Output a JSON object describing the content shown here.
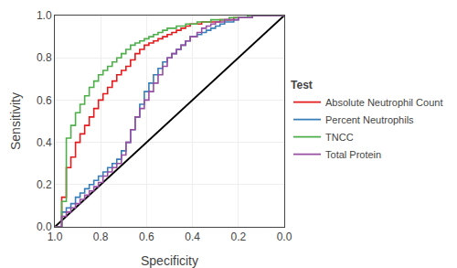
{
  "chart_data": {
    "type": "step",
    "title": "",
    "xlabel": "Specificity",
    "ylabel": "Sensitivity",
    "legend_title": "Test",
    "legend": "right",
    "grid": true,
    "xlim": [
      1.0,
      0.0
    ],
    "ylim": [
      0.0,
      1.0
    ],
    "xticks": [
      {
        "value": 1.0,
        "label": "1.0"
      },
      0.8,
      0.6,
      0.4,
      0.2,
      {
        "value": 0.0,
        "label": "0.0"
      }
    ],
    "yticks": [
      {
        "value": 0.0,
        "label": "0.0"
      },
      0.2,
      0.4,
      0.6,
      0.8,
      {
        "value": 1.0,
        "label": "1.0"
      }
    ],
    "series": [
      {
        "type": "line",
        "color": "#000000",
        "x": [
          1.0,
          0.0
        ],
        "values": [
          0.0,
          1.0
        ]
      },
      {
        "name": "Absolute Neutrophil Count",
        "color": "#e41a1c",
        "x": [
          1.0,
          0.97,
          0.95,
          0.93,
          0.91,
          0.89,
          0.87,
          0.85,
          0.83,
          0.81,
          0.79,
          0.77,
          0.75,
          0.73,
          0.71,
          0.69,
          0.67,
          0.65,
          0.63,
          0.61,
          0.59,
          0.57,
          0.55,
          0.53,
          0.51,
          0.49,
          0.47,
          0.45,
          0.43,
          0.41,
          0.38,
          0.36,
          0.34,
          0.32,
          0.3,
          0.28,
          0.26,
          0.24,
          0.22,
          0.2,
          0.18,
          0.16,
          0.14,
          0.12,
          0.1,
          0.08,
          0.06,
          0.04,
          0.02,
          0.0
        ],
        "values": [
          0.0,
          0.14,
          0.28,
          0.33,
          0.4,
          0.44,
          0.48,
          0.52,
          0.56,
          0.6,
          0.63,
          0.66,
          0.69,
          0.72,
          0.74,
          0.76,
          0.79,
          0.82,
          0.84,
          0.86,
          0.87,
          0.88,
          0.89,
          0.9,
          0.91,
          0.92,
          0.93,
          0.94,
          0.95,
          0.96,
          0.96,
          0.97,
          0.97,
          0.97,
          0.97,
          0.98,
          0.98,
          0.98,
          0.99,
          0.99,
          0.99,
          0.99,
          1.0,
          1.0,
          1.0,
          1.0,
          1.0,
          1.0,
          1.0,
          1.0
        ]
      },
      {
        "name": "Percent Neutrophils",
        "color": "#377eb8",
        "x": [
          1.0,
          0.97,
          0.95,
          0.93,
          0.91,
          0.89,
          0.87,
          0.85,
          0.83,
          0.81,
          0.79,
          0.77,
          0.75,
          0.73,
          0.71,
          0.69,
          0.67,
          0.65,
          0.63,
          0.61,
          0.59,
          0.57,
          0.55,
          0.53,
          0.51,
          0.49,
          0.47,
          0.45,
          0.43,
          0.41,
          0.38,
          0.36,
          0.34,
          0.32,
          0.3,
          0.28,
          0.26,
          0.24,
          0.22,
          0.2,
          0.18,
          0.16,
          0.14,
          0.12,
          0.1,
          0.08,
          0.06,
          0.04,
          0.02,
          0.0
        ],
        "values": [
          0.0,
          0.07,
          0.09,
          0.11,
          0.14,
          0.16,
          0.18,
          0.2,
          0.22,
          0.24,
          0.26,
          0.28,
          0.3,
          0.32,
          0.36,
          0.4,
          0.46,
          0.52,
          0.58,
          0.64,
          0.68,
          0.72,
          0.75,
          0.78,
          0.8,
          0.82,
          0.84,
          0.86,
          0.88,
          0.9,
          0.91,
          0.92,
          0.93,
          0.94,
          0.95,
          0.96,
          0.97,
          0.97,
          0.98,
          0.99,
          0.99,
          0.99,
          1.0,
          1.0,
          1.0,
          1.0,
          1.0,
          1.0,
          1.0,
          1.0
        ]
      },
      {
        "name": "TNCC",
        "color": "#4daf4a",
        "x": [
          1.0,
          0.97,
          0.95,
          0.93,
          0.91,
          0.89,
          0.87,
          0.85,
          0.83,
          0.81,
          0.79,
          0.77,
          0.75,
          0.73,
          0.71,
          0.69,
          0.67,
          0.65,
          0.63,
          0.61,
          0.59,
          0.57,
          0.55,
          0.53,
          0.51,
          0.49,
          0.47,
          0.45,
          0.43,
          0.41,
          0.38,
          0.36,
          0.34,
          0.32,
          0.3,
          0.28,
          0.26,
          0.24,
          0.22,
          0.2,
          0.18,
          0.16,
          0.14,
          0.12,
          0.1,
          0.08,
          0.06,
          0.04,
          0.02,
          0.0
        ],
        "values": [
          0.0,
          0.12,
          0.42,
          0.48,
          0.54,
          0.58,
          0.62,
          0.66,
          0.69,
          0.72,
          0.74,
          0.76,
          0.78,
          0.8,
          0.82,
          0.84,
          0.86,
          0.87,
          0.88,
          0.89,
          0.9,
          0.91,
          0.92,
          0.93,
          0.94,
          0.94,
          0.95,
          0.95,
          0.96,
          0.96,
          0.97,
          0.97,
          0.97,
          0.98,
          0.98,
          0.98,
          0.98,
          0.99,
          0.99,
          0.99,
          0.99,
          1.0,
          1.0,
          1.0,
          1.0,
          1.0,
          1.0,
          1.0,
          1.0,
          1.0
        ]
      },
      {
        "name": "Total Protein",
        "color": "#984ea3",
        "x": [
          1.0,
          0.97,
          0.95,
          0.93,
          0.91,
          0.89,
          0.87,
          0.85,
          0.83,
          0.81,
          0.79,
          0.77,
          0.75,
          0.73,
          0.71,
          0.69,
          0.67,
          0.65,
          0.63,
          0.61,
          0.59,
          0.57,
          0.55,
          0.53,
          0.51,
          0.49,
          0.47,
          0.45,
          0.43,
          0.41,
          0.38,
          0.36,
          0.34,
          0.32,
          0.3,
          0.28,
          0.26,
          0.24,
          0.22,
          0.2,
          0.18,
          0.16,
          0.14,
          0.12,
          0.1,
          0.08,
          0.06,
          0.04,
          0.02,
          0.0
        ],
        "values": [
          0.0,
          0.05,
          0.07,
          0.09,
          0.11,
          0.13,
          0.15,
          0.17,
          0.19,
          0.21,
          0.24,
          0.26,
          0.28,
          0.3,
          0.34,
          0.4,
          0.46,
          0.52,
          0.56,
          0.6,
          0.64,
          0.68,
          0.72,
          0.76,
          0.8,
          0.82,
          0.84,
          0.86,
          0.88,
          0.9,
          0.92,
          0.94,
          0.95,
          0.96,
          0.97,
          0.97,
          0.98,
          0.98,
          0.98,
          0.99,
          0.99,
          0.99,
          1.0,
          1.0,
          1.0,
          1.0,
          1.0,
          1.0,
          1.0,
          1.0
        ]
      }
    ]
  }
}
